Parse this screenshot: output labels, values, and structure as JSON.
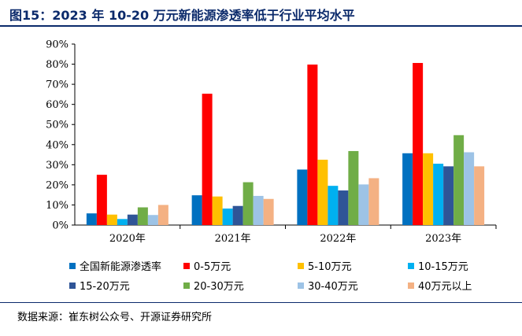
{
  "header": {
    "title": "图15：2023 年 10-20 万元新能源渗透率低于行业平均水平"
  },
  "footer": {
    "source": "数据来源：崔东树公众号、开源证券研究所"
  },
  "chart_data": {
    "type": "bar",
    "categories": [
      "2020年",
      "2021年",
      "2022年",
      "2023年"
    ],
    "y_ticks": [
      "0%",
      "10%",
      "20%",
      "30%",
      "40%",
      "50%",
      "60%",
      "70%",
      "80%",
      "90%"
    ],
    "ylim": [
      0,
      90
    ],
    "grid": false,
    "legend_position": "bottom",
    "series": [
      {
        "name": "全国新能源渗透率",
        "color": "#0070c0",
        "values": [
          5.8,
          14.8,
          27.6,
          35.7
        ]
      },
      {
        "name": "0-5万元",
        "color": "#ff0000",
        "values": [
          25.0,
          65.3,
          79.8,
          80.6
        ]
      },
      {
        "name": "5-10万元",
        "color": "#ffc000",
        "values": [
          5.2,
          14.2,
          32.5,
          35.7
        ]
      },
      {
        "name": "10-15万元",
        "color": "#00b0f0",
        "values": [
          3.0,
          8.2,
          19.5,
          30.5
        ]
      },
      {
        "name": "15-20万元",
        "color": "#2f5597",
        "values": [
          5.2,
          9.5,
          17.2,
          29.2
        ]
      },
      {
        "name": "20-30万元",
        "color": "#70ad47",
        "values": [
          8.8,
          21.3,
          36.8,
          44.7
        ]
      },
      {
        "name": "30-40万元",
        "color": "#9dc3e6",
        "values": [
          5.0,
          14.5,
          20.2,
          36.2
        ]
      },
      {
        "name": "40万元以上",
        "color": "#f4b183",
        "values": [
          10.0,
          13.0,
          23.3,
          29.2
        ]
      }
    ]
  }
}
